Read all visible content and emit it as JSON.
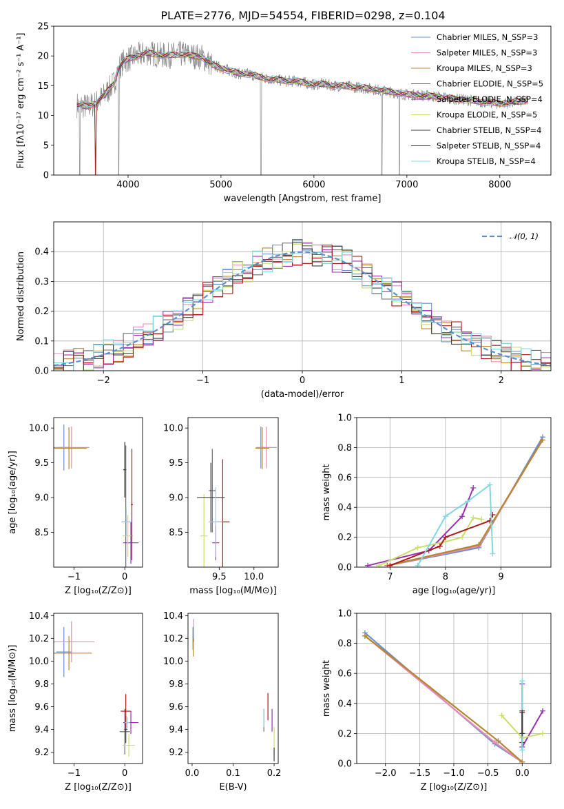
{
  "figure": {
    "title": "PLATE=2776, MJD=54554, FIBERID=0298, z=0.104"
  },
  "colors": {
    "Chabrier MILES": "#6a8fd0",
    "Salpeter MILES": "#e78ab4",
    "Kroupa MILES": "#b8862b",
    "Chabrier ELODIE": "#6b6b6b",
    "Salpeter ELODIE": "#9b2fb0",
    "Kroupa ELODIE": "#c8e06a",
    "Chabrier STELIB": "#3a3a3a",
    "Salpeter STELIB": "#b01818",
    "Kroupa STELIB": "#7fd8e0",
    "data": "#888888",
    "fit": "#e07a3a",
    "gauss": "#5a8ed0",
    "grid": "#b0b0b0"
  },
  "chart_data": [
    {
      "id": "spectrum",
      "type": "line",
      "xlabel": "wavelength [Angstrom, rest frame]",
      "ylabel": "Flux [fλ10⁻¹⁷ erg cm⁻² s⁻¹ A⁻¹]",
      "xlim": [
        3200,
        8550
      ],
      "ylim": [
        0,
        25
      ],
      "xticks": [
        4000,
        5000,
        6000,
        7000,
        8000
      ],
      "yticks": [
        0,
        5,
        10,
        15,
        20,
        25
      ],
      "legend_position": "top-right",
      "legend": [
        "Chabrier MILES, N_SSP=3",
        "Salpeter MILES, N_SSP=3",
        "Kroupa MILES, N_SSP=3",
        "Chabrier ELODIE, N_SSP=5",
        "Salpeter ELODIE, N_SSP=4",
        "Kroupa ELODIE, N_SSP=5",
        "Chabrier STELIB, N_SSP=4",
        "Salpeter STELIB, N_SSP=4",
        "Kroupa STELIB, N_SSP=4"
      ],
      "continuum": {
        "x": [
          3450,
          3550,
          3650,
          3750,
          3850,
          3900,
          3950,
          4000,
          4100,
          4200,
          4300,
          4400,
          4500,
          4600,
          4700,
          4800,
          4900,
          5000,
          5100,
          5200,
          5300,
          5400,
          5500,
          5600,
          5700,
          5800,
          5900,
          6000,
          6100,
          6200,
          6300,
          6400,
          6500,
          6600,
          6700,
          6800,
          6900,
          7000,
          7100,
          7200,
          7300,
          7400,
          7500,
          7600,
          7700,
          7800,
          7900,
          8000,
          8100,
          8200,
          8300
        ],
        "y": [
          11.8,
          11.5,
          12.0,
          13.5,
          15.5,
          18.0,
          19.0,
          19.5,
          20.0,
          20.5,
          20.3,
          20.0,
          20.2,
          20.3,
          20.0,
          19.8,
          18.5,
          18.0,
          17.5,
          17.0,
          17.0,
          16.5,
          16.2,
          16.0,
          15.8,
          15.8,
          15.5,
          15.2,
          15.3,
          15.0,
          15.0,
          14.8,
          14.7,
          14.5,
          14.3,
          14.0,
          13.8,
          13.5,
          13.5,
          13.3,
          13.2,
          13.0,
          12.8,
          12.7,
          12.5,
          12.3,
          12.2,
          12.0,
          12.2,
          12.3,
          12.5
        ]
      },
      "drops": [
        3480,
        3650,
        3900,
        5430,
        6730,
        6920
      ]
    },
    {
      "id": "residuals",
      "type": "line",
      "xlabel": "(data-model)/error",
      "ylabel": "Normed distribution",
      "xlim": [
        -2.5,
        2.5
      ],
      "ylim": [
        0,
        0.5
      ],
      "xticks": [
        -2,
        -1,
        0,
        1,
        2
      ],
      "xticklabels": [
        "−2",
        "−1",
        "0",
        "1",
        "2"
      ],
      "yticks": [
        0.0,
        0.1,
        0.2,
        0.3,
        0.4
      ],
      "yticklabels": [
        "0.0",
        "0.1",
        "0.2",
        "0.3",
        "0.4"
      ],
      "legend": [
        "𝒩(0, 1)"
      ],
      "legend_position": "top-right",
      "bin_width": 0.1
    },
    {
      "id": "age-vs-Z",
      "type": "scatter",
      "xlabel": "Z [log₁₀(Z/Z⊙)]",
      "ylabel": "age  [log₁₀(age/yr)]",
      "xlim": [
        -1.4,
        0.35
      ],
      "ylim": [
        8.0,
        10.15
      ],
      "xticks": [
        -1,
        0
      ],
      "xticklabels": [
        "−1",
        "0"
      ],
      "yticks": [
        8.5,
        9.0,
        9.5,
        10.0
      ],
      "yticklabels": [
        "8.5",
        "9.0",
        "9.5",
        "10.0"
      ],
      "points": [
        {
          "model": "Chabrier MILES",
          "x": -1.2,
          "y": 9.72,
          "xe": 0.12,
          "ye": 0.33
        },
        {
          "model": "Salpeter MILES",
          "x": -1.05,
          "y": 9.72,
          "xe": 0.35,
          "ye": 0.3
        },
        {
          "model": "Kroupa MILES",
          "x": -1.1,
          "y": 9.71,
          "xe": 0.35,
          "ye": 0.3
        },
        {
          "model": "Chabrier ELODIE",
          "x": 0.02,
          "y": 8.65,
          "xe": 0.08,
          "ye": 1.1
        },
        {
          "model": "Salpeter ELODIE",
          "x": 0.12,
          "y": 8.35,
          "xe": 0.15,
          "ye": 0.3
        },
        {
          "model": "Kroupa ELODIE",
          "x": 0.06,
          "y": 8.45,
          "xe": 0.1,
          "ye": 0.3
        },
        {
          "model": "Chabrier STELIB",
          "x": 0.0,
          "y": 9.4,
          "xe": 0.03,
          "ye": 0.4
        },
        {
          "model": "Salpeter STELIB",
          "x": 0.14,
          "y": 8.9,
          "xe": 0.02,
          "ye": 0.8
        },
        {
          "model": "Kroupa STELIB",
          "x": 0.03,
          "y": 8.65,
          "xe": 0.1,
          "ye": 0.2
        }
      ]
    },
    {
      "id": "age-vs-mass",
      "type": "scatter",
      "xlabel": "mass [log₁₀(M/M⊙)]",
      "xlim": [
        9.05,
        10.35
      ],
      "ylim": [
        8.0,
        10.15
      ],
      "xticks": [
        9.5,
        10.0
      ],
      "xticklabels": [
        "9.5",
        "10.0"
      ],
      "yticks": [
        8.5,
        9.0,
        9.5,
        10.0
      ],
      "yticklabels": [
        "8.5",
        "9.0",
        "9.5",
        "10.0"
      ],
      "points": [
        {
          "model": "Chabrier MILES",
          "x": 10.1,
          "y": 9.72,
          "xe": 0.05,
          "ye": 0.3
        },
        {
          "model": "Salpeter MILES",
          "x": 10.18,
          "y": 9.72,
          "xe": 0.15,
          "ye": 0.3
        },
        {
          "model": "Kroupa MILES",
          "x": 10.12,
          "y": 9.71,
          "xe": 0.1,
          "ye": 0.3
        },
        {
          "model": "Chabrier ELODIE",
          "x": 9.4,
          "y": 9.1,
          "xe": 0.05,
          "ye": 0.6
        },
        {
          "model": "Salpeter ELODIE",
          "x": 9.45,
          "y": 8.35,
          "xe": 0.05,
          "ye": 0.25
        },
        {
          "model": "Kroupa ELODIE",
          "x": 9.28,
          "y": 8.45,
          "xe": 0.05,
          "ye": 0.6
        },
        {
          "model": "Chabrier STELIB",
          "x": 9.38,
          "y": 9.0,
          "xe": 0.2,
          "ye": 0.5
        },
        {
          "model": "Salpeter STELIB",
          "x": 9.55,
          "y": 8.65,
          "xe": 0.1,
          "ye": 0.9
        },
        {
          "model": "Kroupa STELIB",
          "x": 9.45,
          "y": 8.65,
          "xe": 0.1,
          "ye": 0.5
        }
      ]
    },
    {
      "id": "weight-vs-age",
      "type": "line",
      "xlabel": "age  [log₁₀(age/yr)]",
      "ylabel": "mass weight",
      "xlim": [
        6.4,
        9.9
      ],
      "ylim": [
        0,
        1.0
      ],
      "xticks": [
        7,
        8,
        9
      ],
      "xticklabels": [
        "7",
        "8",
        "9"
      ],
      "yticks": [
        0.0,
        0.2,
        0.4,
        0.6,
        0.8,
        1.0
      ],
      "yticklabels": [
        "0.0",
        "0.2",
        "0.4",
        "0.6",
        "0.8",
        "1.0"
      ],
      "series": [
        {
          "model": "Chabrier MILES",
          "x": [
            6.95,
            8.6,
            9.75
          ],
          "y": [
            0.01,
            0.13,
            0.87
          ]
        },
        {
          "model": "Salpeter MILES",
          "x": [
            6.95,
            8.6,
            9.75
          ],
          "y": [
            0.01,
            0.14,
            0.85
          ]
        },
        {
          "model": "Kroupa MILES",
          "x": [
            6.95,
            8.6,
            9.75
          ],
          "y": [
            0.01,
            0.15,
            0.85
          ]
        },
        {
          "model": "Salpeter ELODIE",
          "x": [
            6.6,
            7.7,
            8.3,
            8.5
          ],
          "y": [
            0.01,
            0.11,
            0.34,
            0.53
          ]
        },
        {
          "model": "Kroupa ELODIE",
          "x": [
            6.8,
            7.5,
            8.0,
            8.3,
            8.5,
            8.65
          ],
          "y": [
            0.01,
            0.13,
            0.17,
            0.2,
            0.33,
            0.32
          ]
        },
        {
          "model": "Salpeter STELIB",
          "x": [
            7.0,
            7.9,
            8.0,
            8.8,
            8.85
          ],
          "y": [
            0.01,
            0.14,
            0.2,
            0.31,
            0.35
          ]
        },
        {
          "model": "Kroupa STELIB",
          "x": [
            7.5,
            8.0,
            8.4,
            8.8,
            8.85
          ],
          "y": [
            0.01,
            0.34,
            0.44,
            0.55,
            0.09
          ]
        }
      ]
    },
    {
      "id": "mass-vs-Z",
      "type": "scatter",
      "xlabel": "Z [log₁₀(Z/Z⊙)]",
      "ylabel": "mass [log₁₀(M/M⊙)]",
      "xlim": [
        -1.4,
        0.35
      ],
      "ylim": [
        9.1,
        10.42
      ],
      "xticks": [
        -1,
        0
      ],
      "xticklabels": [
        "−1",
        "0"
      ],
      "yticks": [
        9.2,
        9.4,
        9.6,
        9.8,
        10.0,
        10.2,
        10.4
      ],
      "yticklabels": [
        "9.2",
        "9.4",
        "9.6",
        "9.8",
        "10.0",
        "10.2",
        "10.4"
      ],
      "points": [
        {
          "model": "Chabrier MILES",
          "x": -1.2,
          "y": 10.08,
          "xe": 0.15,
          "ye": 0.22
        },
        {
          "model": "Salpeter MILES",
          "x": -1.05,
          "y": 10.17,
          "xe": 0.45,
          "ye": 0.18
        },
        {
          "model": "Kroupa MILES",
          "x": -1.1,
          "y": 10.07,
          "xe": 0.45,
          "ye": 0.15
        },
        {
          "model": "Chabrier ELODIE",
          "x": 0.0,
          "y": 9.38,
          "xe": 0.1,
          "ye": 0.2
        },
        {
          "model": "Salpeter ELODIE",
          "x": 0.12,
          "y": 9.46,
          "xe": 0.15,
          "ye": 0.1
        },
        {
          "model": "Kroupa ELODIE",
          "x": 0.08,
          "y": 9.26,
          "xe": 0.12,
          "ye": 0.1
        },
        {
          "model": "Chabrier STELIB",
          "x": 0.02,
          "y": 9.4,
          "xe": 0.03,
          "ye": 0.12
        },
        {
          "model": "Salpeter STELIB",
          "x": 0.02,
          "y": 9.56,
          "xe": 0.1,
          "ye": 0.15
        },
        {
          "model": "Kroupa STELIB",
          "x": 0.05,
          "y": 9.46,
          "xe": 0.05,
          "ye": 0.05
        }
      ]
    },
    {
      "id": "mass-vs-EBV",
      "type": "scatter",
      "xlabel": "E(B-V)",
      "xlim": [
        -0.01,
        0.21
      ],
      "ylim": [
        9.1,
        10.42
      ],
      "xticks": [
        0.0,
        0.1,
        0.2
      ],
      "xticklabels": [
        "0.0",
        "0.1",
        "0.2"
      ],
      "yticks": [
        9.2,
        9.4,
        9.6,
        9.8,
        10.0,
        10.2,
        10.4
      ],
      "yticklabels": [
        "9.2",
        "9.4",
        "9.6",
        "9.8",
        "10.0",
        "10.2",
        "10.4"
      ],
      "points": [
        {
          "model": "Chabrier MILES",
          "x": 0.002,
          "y": 10.2,
          "xe": 0.0,
          "ye": 0.1
        },
        {
          "model": "Salpeter MILES",
          "x": 0.004,
          "y": 10.27,
          "xe": 0.0,
          "ye": 0.1
        },
        {
          "model": "Kroupa MILES",
          "x": 0.003,
          "y": 10.12,
          "xe": 0.0,
          "ye": 0.08
        },
        {
          "model": "Chabrier ELODIE",
          "x": 0.175,
          "y": 9.48,
          "xe": 0.0,
          "ye": 0.1
        },
        {
          "model": "Salpeter ELODIE",
          "x": 0.195,
          "y": 9.48,
          "xe": 0.0,
          "ye": 0.1
        },
        {
          "model": "Kroupa ELODIE",
          "x": 0.2,
          "y": 9.3,
          "xe": 0.0,
          "ye": 0.12
        },
        {
          "model": "Chabrier STELIB",
          "x": 0.2,
          "y": 9.18,
          "xe": 0.0,
          "ye": 0.06
        },
        {
          "model": "Salpeter STELIB",
          "x": 0.185,
          "y": 9.6,
          "xe": 0.0,
          "ye": 0.12
        },
        {
          "model": "Kroupa STELIB",
          "x": 0.175,
          "y": 9.5,
          "xe": 0.0,
          "ye": 0.08
        }
      ]
    },
    {
      "id": "weight-vs-Z",
      "type": "line",
      "xlabel": "Z [log₁₀(Z/Z⊙)]",
      "ylabel": "mass weight",
      "xlim": [
        -2.42,
        0.42
      ],
      "ylim": [
        0,
        1.0
      ],
      "xticks": [
        -2.0,
        -1.5,
        -1.0,
        -0.5,
        0.0
      ],
      "xticklabels": [
        "−2.0",
        "−1.5",
        "−1.0",
        "−0.5",
        "0.0"
      ],
      "yticks": [
        0.0,
        0.2,
        0.4,
        0.6,
        0.8,
        1.0
      ],
      "yticklabels": [
        "0.0",
        "0.2",
        "0.4",
        "0.6",
        "0.8",
        "1.0"
      ],
      "series": [
        {
          "model": "Chabrier MILES",
          "x": [
            -2.3,
            -0.4,
            0.0
          ],
          "y": [
            0.87,
            0.13,
            0.01
          ]
        },
        {
          "model": "Salpeter MILES",
          "x": [
            -2.3,
            -0.4,
            0.0
          ],
          "y": [
            0.85,
            0.14,
            0.01
          ]
        },
        {
          "model": "Kroupa MILES",
          "x": [
            -2.3,
            -0.35,
            0.0
          ],
          "y": [
            0.85,
            0.15,
            0.01
          ]
        },
        {
          "model": "Salpeter ELODIE",
          "x": [
            0.0,
            0.0,
            0.3
          ],
          "y": [
            0.53,
            0.11,
            0.35
          ]
        },
        {
          "model": "Kroupa ELODIE",
          "x": [
            -0.3,
            0.0,
            0.3
          ],
          "y": [
            0.32,
            0.17,
            0.2
          ]
        },
        {
          "model": "Salpeter STELIB",
          "x": [
            0.0,
            0.0
          ],
          "y": [
            0.35,
            0.14
          ]
        },
        {
          "model": "Kroupa STELIB",
          "x": [
            0.0,
            0.0
          ],
          "y": [
            0.55,
            0.09
          ]
        },
        {
          "model": "Chabrier STELIB",
          "x": [
            0.0,
            0.0
          ],
          "y": [
            0.34,
            0.2
          ]
        }
      ]
    }
  ]
}
